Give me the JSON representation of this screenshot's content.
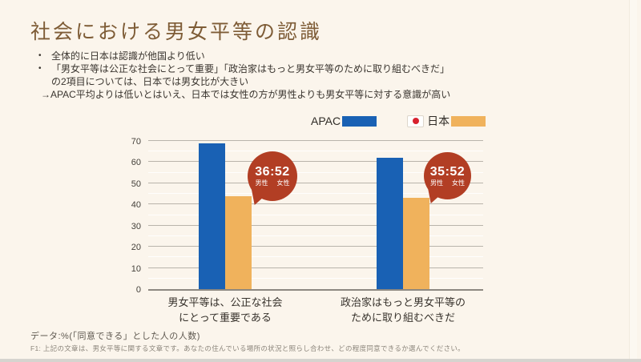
{
  "slide": {
    "title": "社会における男女平等の認識",
    "bullets": [
      {
        "marker": "•",
        "lines": [
          "全体的に日本は認識が他国より低い"
        ]
      },
      {
        "marker": "•",
        "lines": [
          "「男女平等は公正な社会にとって重要」「政治家はもっと男女平等のために取り組むべきだ」",
          "の2項目については、日本では男女比が大きい",
          "→APAC平均よりは低いとはいえ、日本では女性の方が男性よりも男女平等に対する意識が高い"
        ]
      }
    ]
  },
  "legend": {
    "apac_label": "APAC",
    "japan_label": "日本",
    "japan_flag_icon": "japan-flag-icon"
  },
  "chart_data": {
    "type": "bar",
    "title": "",
    "xlabel": "",
    "ylabel": "",
    "categories": [
      [
        "男女平等は、公正な社会",
        "にとって重要である"
      ],
      [
        "政治家はもっと男女平等の",
        "ために取り組むべきだ"
      ]
    ],
    "series": [
      {
        "name": "APAC",
        "color": "#1961b4",
        "values": [
          69,
          62
        ]
      },
      {
        "name": "日本",
        "color": "#f0b25c",
        "values": [
          44,
          43
        ]
      }
    ],
    "y_axis": {
      "min": 0,
      "max": 70,
      "major_step": 10,
      "minor_step": 5,
      "ticks": [
        0,
        10,
        20,
        30,
        40,
        50,
        60,
        70
      ]
    },
    "grid": "major gray lines every 10, faint white minor lines every 5",
    "legend_position": "top-right above plot",
    "annotations": [
      {
        "ratio": "36:52",
        "male_label": "男性",
        "female_label": "女性",
        "target": "日本 bar of category 1"
      },
      {
        "ratio": "35:52",
        "male_label": "男性",
        "female_label": "女性",
        "target": "日本 bar of category 2"
      }
    ]
  },
  "colors": {
    "background": "#fbf5ec",
    "title_text": "#7e5c36",
    "apac_bar": "#1961b4",
    "japan_bar": "#f0b25c",
    "badge": "#b23e24",
    "flag_red": "#d8222e"
  },
  "footer": {
    "data_note": "データ:%(「同意できる」とした人の人数)",
    "f1_note": "F1: 上記の文章は、男女平等に関する文章です。あなたの住んでいる場所の状況と照らし合わせ、どの程度同意できるか選んでください。"
  }
}
